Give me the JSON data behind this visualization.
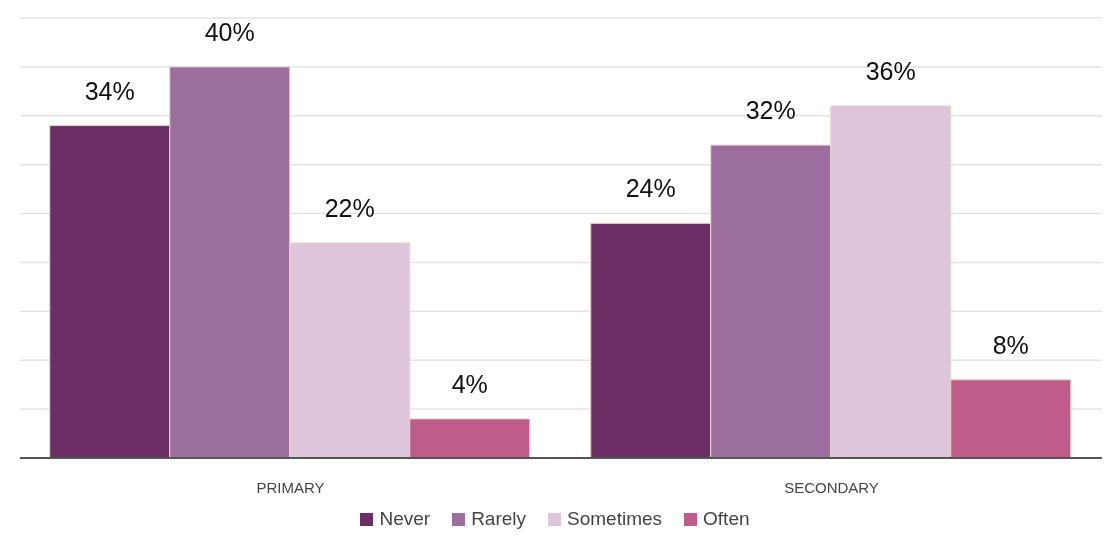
{
  "chart_data": {
    "type": "bar",
    "categories": [
      "PRIMARY",
      "SECONDARY"
    ],
    "series": [
      {
        "name": "Never",
        "color": "#6b2f66",
        "values": [
          34,
          24
        ],
        "value_labels": [
          "34%",
          "24%"
        ]
      },
      {
        "name": "Rarely",
        "color": "#9c6f9e",
        "values": [
          40,
          32
        ],
        "value_labels": [
          "40%",
          "32%"
        ]
      },
      {
        "name": "Sometimes",
        "color": "#dfc5da",
        "values": [
          22,
          36
        ],
        "value_labels": [
          "22%",
          "36%"
        ]
      },
      {
        "name": "Often",
        "color": "#c05c89",
        "values": [
          4,
          8
        ],
        "value_labels": [
          "4%",
          "8%"
        ]
      }
    ],
    "grid": "y",
    "tick_labels": "x",
    "legend": "bottom"
  }
}
